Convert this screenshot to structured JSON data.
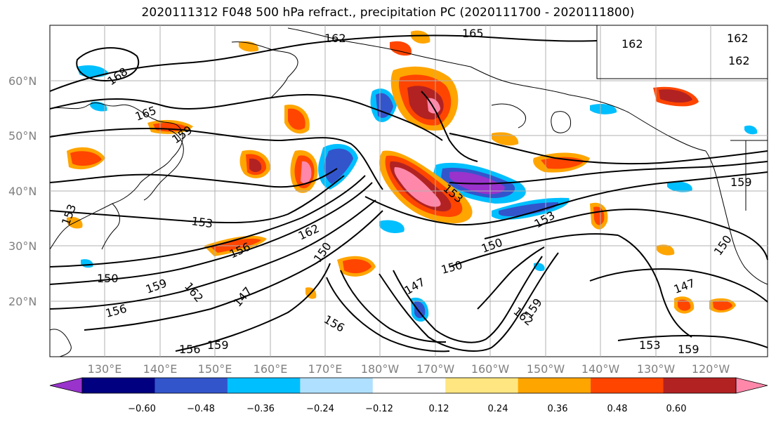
{
  "title": "2020111312 F048 500 hPa refract., precipitation PC (2020111700 - 2020111800)",
  "map": {
    "lat_labels": [
      "60°N",
      "50°N",
      "40°N",
      "30°N",
      "20°N"
    ],
    "lon_labels": [
      "130°E",
      "140°E",
      "150°E",
      "160°E",
      "170°E",
      "180°W",
      "170°W",
      "160°W",
      "150°W",
      "140°W",
      "130°W",
      "120°W"
    ],
    "contour_labels": [
      "162",
      "165",
      "168",
      "165",
      "159",
      "153",
      "153",
      "150",
      "159",
      "162",
      "156",
      "150",
      "162",
      "147",
      "156",
      "159",
      "156",
      "150",
      "153",
      "147",
      "150",
      "156",
      "162",
      "159",
      "150",
      "153",
      "159",
      "147",
      "153",
      "159",
      "162",
      "162",
      "162"
    ]
  },
  "colorbar": {
    "ticks": [
      "−0.60",
      "−0.48",
      "−0.36",
      "−0.24",
      "−0.12",
      "0.12",
      "0.24",
      "0.36",
      "0.48",
      "0.60"
    ],
    "colors": [
      "#9933cc",
      "#000080",
      "#3355cc",
      "#00bfff",
      "#b0e0ff",
      "#ffffff",
      "#ffe680",
      "#ffa500",
      "#ff4500",
      "#b22222",
      "#ff88aa"
    ]
  }
}
